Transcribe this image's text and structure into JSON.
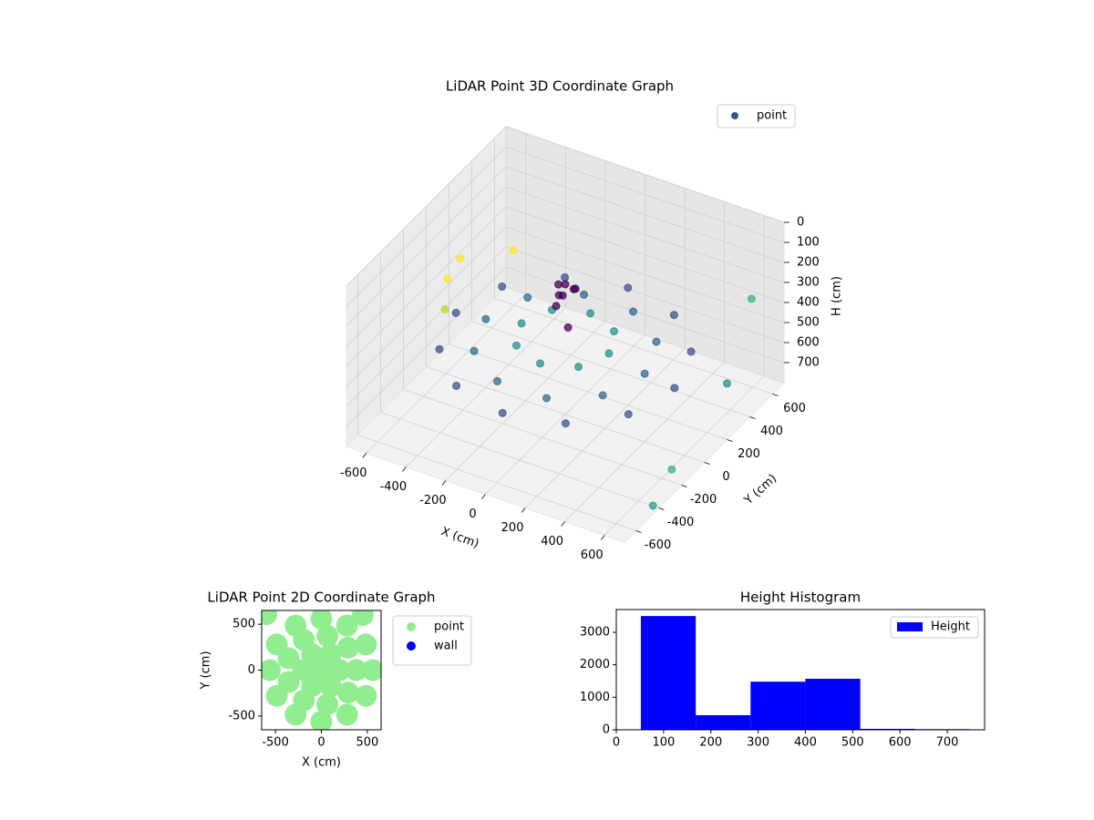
{
  "chart_data": [
    {
      "type": "scatter3d",
      "title": "LiDAR Point 3D Coordinate Graph",
      "xlabel": "X (cm)",
      "ylabel": "Y (cm)",
      "hlabel": "H (cm)",
      "xlim": [
        -700,
        700
      ],
      "ylim": [
        -700,
        700
      ],
      "hlim": [
        800,
        0
      ],
      "xticks": [
        -600,
        -400,
        -200,
        0,
        200,
        400,
        600
      ],
      "yticks": [
        -600,
        -400,
        -200,
        0,
        200,
        400,
        600
      ],
      "hticks": [
        0,
        100,
        200,
        300,
        400,
        500,
        600,
        700
      ],
      "grid": true,
      "legend": "upper right",
      "series": [
        {
          "name": "point",
          "color": "#3b528b",
          "x": [
            550,
            476,
            275,
            0,
            -275,
            -476,
            -550,
            -476,
            -275,
            0,
            275,
            476,
            400,
            324,
            124,
            -124,
            -324,
            -400,
            -324,
            -124,
            124,
            324,
            220,
            156,
            0,
            -156,
            -220,
            -156,
            0,
            156,
            0,
            40,
            -40,
            10,
            20,
            -20,
            60,
            -80,
            -700,
            -650,
            -560,
            -480,
            640,
            700,
            680,
            700
          ],
          "y": [
            0,
            275,
            476,
            550,
            476,
            275,
            0,
            -275,
            -476,
            -550,
            -476,
            -275,
            0,
            235,
            380,
            380,
            235,
            0,
            -235,
            -380,
            -380,
            -235,
            0,
            156,
            220,
            156,
            0,
            -156,
            -220,
            -156,
            0,
            20,
            10,
            -40,
            40,
            -20,
            -80,
            60,
            300,
            100,
            -80,
            380,
            520,
            200,
            -250,
            -450
          ],
          "h": [
            480,
            480,
            480,
            480,
            480,
            480,
            480,
            480,
            480,
            480,
            480,
            480,
            460,
            460,
            460,
            460,
            460,
            460,
            460,
            460,
            460,
            460,
            420,
            420,
            420,
            420,
            420,
            420,
            420,
            420,
            150,
            170,
            170,
            180,
            190,
            200,
            300,
            320,
            430,
            400,
            420,
            360,
            300,
            520,
            700,
            760
          ],
          "colors": [
            "#3b528b",
            "#3b528b",
            "#3b528b",
            "#3b528b",
            "#3b528b",
            "#3b528b",
            "#3b528b",
            "#3b528b",
            "#3b528b",
            "#3b528b",
            "#3b528b",
            "#3b528b",
            "#31688e",
            "#31688e",
            "#31688e",
            "#31688e",
            "#31688e",
            "#31688e",
            "#31688e",
            "#31688e",
            "#31688e",
            "#31688e",
            "#21918c",
            "#21918c",
            "#21918c",
            "#21918c",
            "#21918c",
            "#21918c",
            "#21918c",
            "#21918c",
            "#440154",
            "#440154",
            "#440154",
            "#440154",
            "#440154",
            "#440154",
            "#440154",
            "#440154",
            "#fde725",
            "#fde725",
            "#b5de2b",
            "#fde725",
            "#35b779",
            "#21918c",
            "#35b779",
            "#2a9d8c"
          ]
        }
      ]
    },
    {
      "type": "scatter",
      "title": "LiDAR Point 2D Coordinate Graph",
      "xlabel": "X (cm)",
      "ylabel": "Y (cm)",
      "xlim": [
        -650,
        650
      ],
      "ylim": [
        -650,
        650
      ],
      "xticks": [
        -500,
        0,
        500
      ],
      "yticks": [
        -500,
        0,
        500
      ],
      "legend": "outside right",
      "series": [
        {
          "name": "point",
          "color": "#90ee90",
          "x": [
            560,
            485,
            280,
            0,
            -280,
            -485,
            -560,
            -485,
            -280,
            0,
            280,
            485,
            380,
            291,
            66,
            -190,
            -357,
            -357,
            -190,
            66,
            291,
            200,
            100,
            -100,
            -200,
            -100,
            100,
            0,
            -600,
            450
          ],
          "y": [
            0,
            280,
            485,
            560,
            485,
            280,
            0,
            -280,
            -485,
            -560,
            -485,
            -280,
            0,
            244,
            374,
            329,
            130,
            -130,
            -329,
            -374,
            -244,
            0,
            173,
            173,
            0,
            -173,
            -173,
            0,
            610,
            600
          ]
        },
        {
          "name": "wall",
          "color": "#0000ff",
          "x": [],
          "y": []
        }
      ]
    },
    {
      "type": "histogram",
      "title": "Height Histogram",
      "xlim": [
        0,
        779
      ],
      "ylim": [
        0,
        3700
      ],
      "xticks": [
        0,
        100,
        200,
        300,
        400,
        500,
        600,
        700
      ],
      "yticks": [
        0,
        1000,
        2000,
        3000
      ],
      "legend": "upper right",
      "bins": [
        52,
        168,
        284,
        400,
        516,
        632,
        748
      ],
      "series": [
        {
          "name": "Height",
          "color": "#0000ff",
          "values": [
            3500,
            450,
            1480,
            1570,
            30,
            20
          ]
        }
      ]
    }
  ]
}
